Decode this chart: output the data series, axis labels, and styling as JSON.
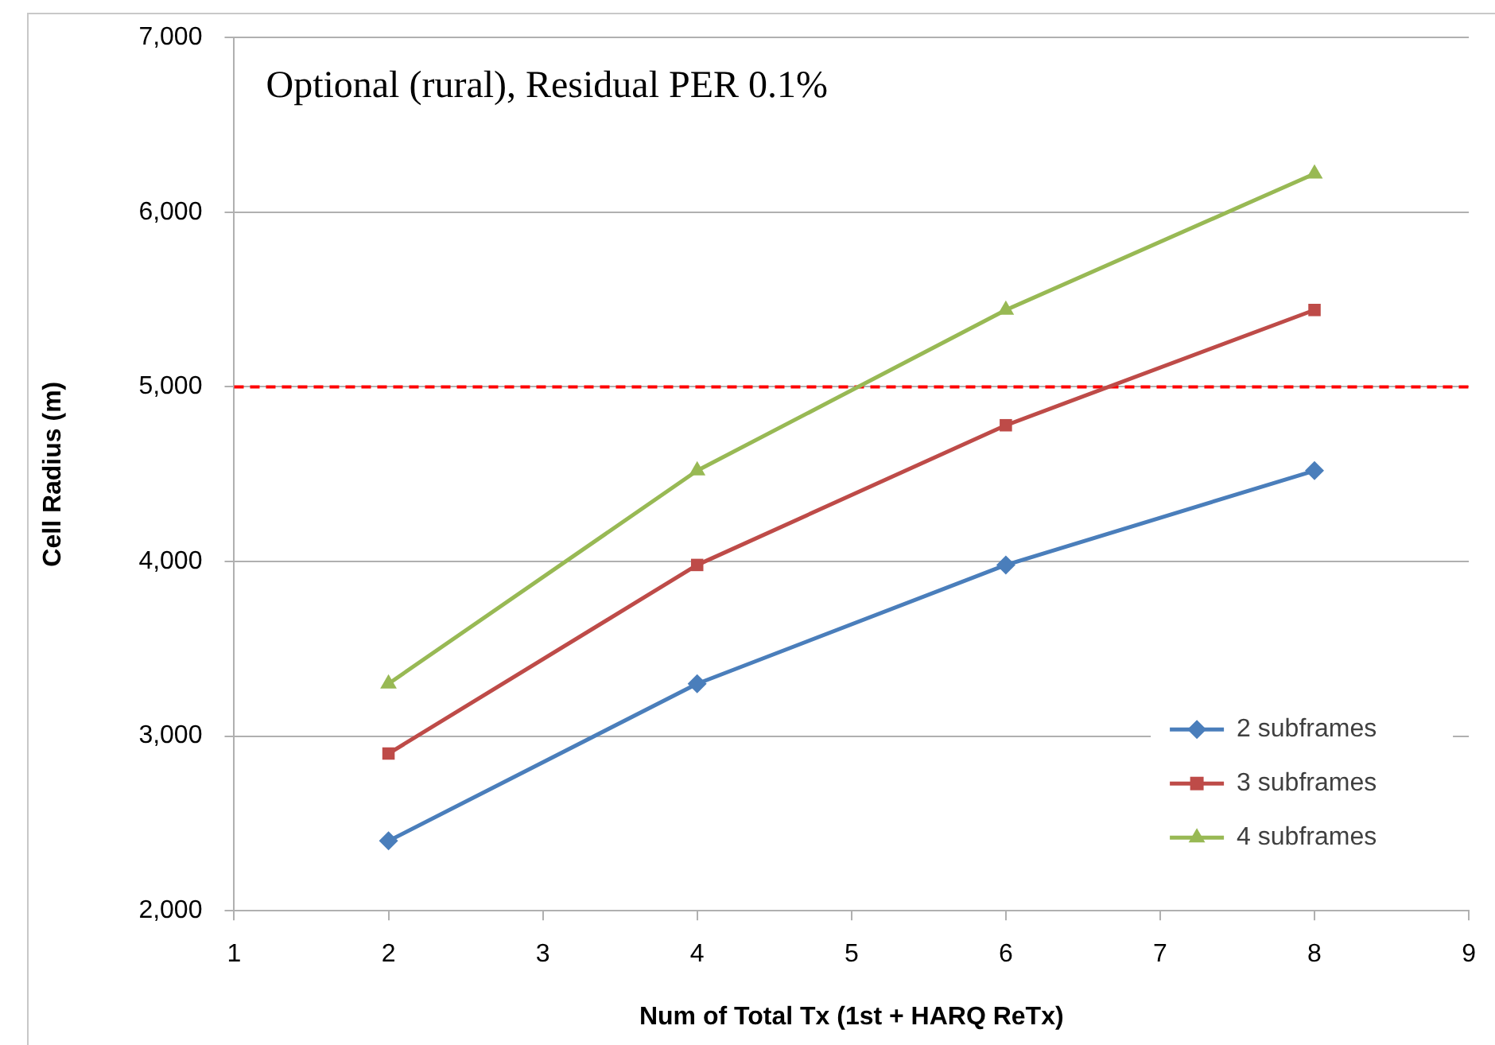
{
  "chart_data": {
    "type": "line",
    "title": "Optional (rural), Residual PER 0.1%",
    "xlabel": "Num of Total Tx (1st + HARQ ReTx)",
    "ylabel": "Cell Radius (m)",
    "x": [
      2,
      4,
      6,
      8
    ],
    "series": [
      {
        "name": "2 subframes",
        "color": "#4a7ebb",
        "marker": "diamond",
        "values": [
          2400,
          3300,
          3980,
          4520
        ]
      },
      {
        "name": "3 subframes",
        "color": "#be4b48",
        "marker": "square",
        "values": [
          2900,
          3980,
          4780,
          5440
        ]
      },
      {
        "name": "4 subframes",
        "color": "#98b954",
        "marker": "triangle",
        "values": [
          3300,
          4520,
          5440,
          6220
        ]
      }
    ],
    "xlim": [
      1,
      9
    ],
    "xticks": [
      1,
      2,
      3,
      4,
      5,
      6,
      7,
      8,
      9
    ],
    "ylim": [
      2000,
      7000
    ],
    "yticks": [
      {
        "value": 2000,
        "label": "2,000"
      },
      {
        "value": 3000,
        "label": "3,000"
      },
      {
        "value": 4000,
        "label": "4,000"
      },
      {
        "value": 5000,
        "label": "5,000"
      },
      {
        "value": 6000,
        "label": "6,000"
      },
      {
        "value": 7000,
        "label": "7,000"
      }
    ],
    "ref_lines": [
      {
        "axis": "y",
        "value": 5000,
        "color": "#ff0000",
        "line_style": "dashed"
      }
    ],
    "grid": "y",
    "legend": "bottom right",
    "line_style": "solid"
  }
}
